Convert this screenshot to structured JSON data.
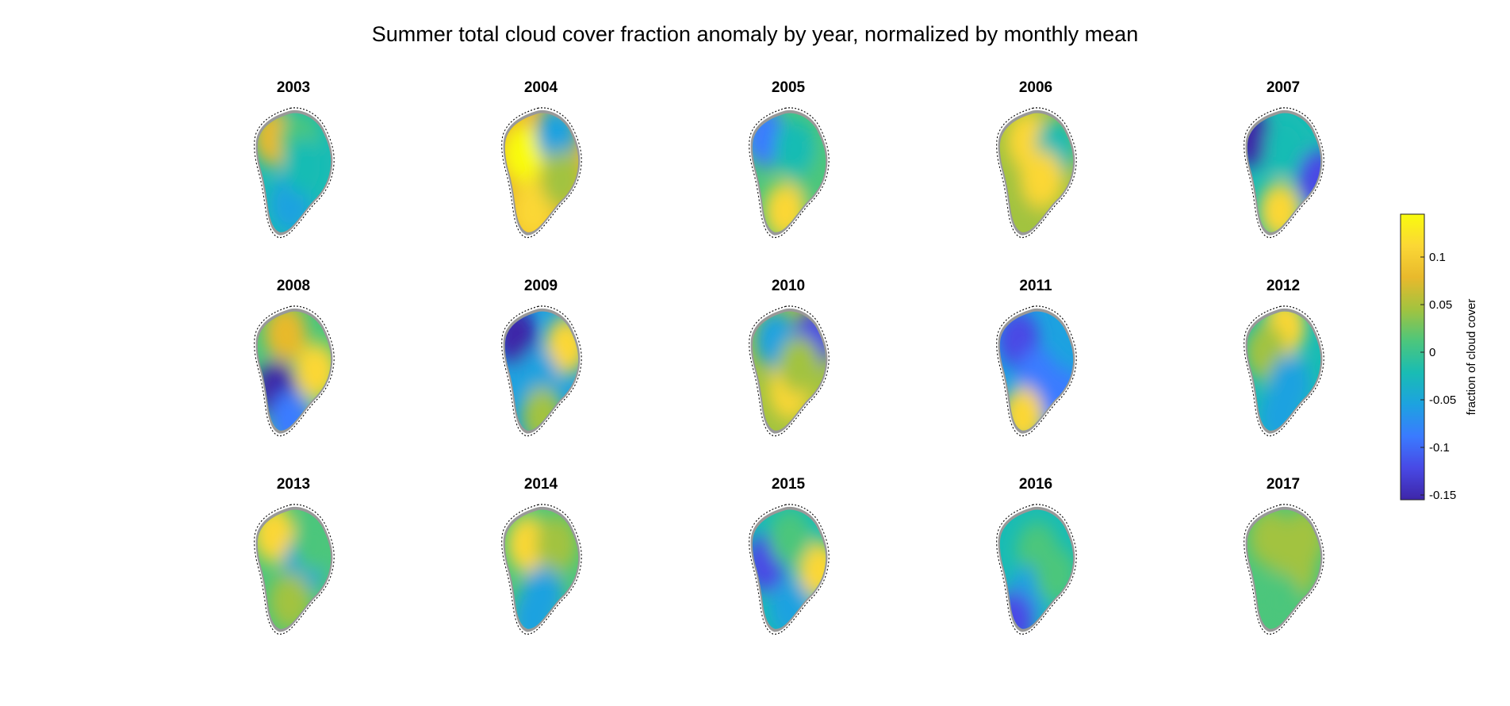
{
  "title": "Summer total cloud cover fraction anomaly by year, normalized by monthly mean",
  "chart_data": {
    "type": "heatmap",
    "title": "Summer total cloud cover fraction anomaly by year, normalized by monthly mean",
    "layout": "3 rows x 5 columns of Greenland maps",
    "panels": [
      {
        "year": "2003",
        "mean_anomaly": -0.01,
        "blobs": [
          {
            "cx": 0.28,
            "cy": 0.22,
            "v": 0.07
          },
          {
            "cx": 0.55,
            "cy": 0.25,
            "v": 0.0
          },
          {
            "cx": 0.45,
            "cy": 0.75,
            "v": -0.06
          },
          {
            "cx": 0.6,
            "cy": 0.45,
            "v": -0.02
          }
        ]
      },
      {
        "year": "2004",
        "mean_anomaly": 0.08,
        "blobs": [
          {
            "cx": 0.3,
            "cy": 0.35,
            "v": 0.14
          },
          {
            "cx": 0.65,
            "cy": 0.2,
            "v": -0.05
          },
          {
            "cx": 0.4,
            "cy": 0.8,
            "v": 0.1
          },
          {
            "cx": 0.7,
            "cy": 0.55,
            "v": 0.03
          }
        ]
      },
      {
        "year": "2005",
        "mean_anomaly": 0.0,
        "blobs": [
          {
            "cx": 0.25,
            "cy": 0.22,
            "v": -0.1
          },
          {
            "cx": 0.45,
            "cy": 0.8,
            "v": 0.1
          },
          {
            "cx": 0.7,
            "cy": 0.45,
            "v": 0.02
          },
          {
            "cx": 0.55,
            "cy": 0.3,
            "v": -0.03
          }
        ]
      },
      {
        "year": "2006",
        "mean_anomaly": 0.06,
        "blobs": [
          {
            "cx": 0.4,
            "cy": 0.25,
            "v": 0.11
          },
          {
            "cx": 0.7,
            "cy": 0.3,
            "v": -0.02
          },
          {
            "cx": 0.35,
            "cy": 0.7,
            "v": 0.04
          },
          {
            "cx": 0.55,
            "cy": 0.55,
            "v": 0.1
          }
        ]
      },
      {
        "year": "2007",
        "mean_anomaly": -0.02,
        "blobs": [
          {
            "cx": 0.15,
            "cy": 0.22,
            "v": -0.15
          },
          {
            "cx": 0.5,
            "cy": 0.3,
            "v": -0.03
          },
          {
            "cx": 0.45,
            "cy": 0.8,
            "v": 0.11
          },
          {
            "cx": 0.85,
            "cy": 0.55,
            "v": -0.12
          }
        ]
      },
      {
        "year": "2008",
        "mean_anomaly": 0.0,
        "blobs": [
          {
            "cx": 0.3,
            "cy": 0.65,
            "v": -0.14
          },
          {
            "cx": 0.72,
            "cy": 0.5,
            "v": 0.11
          },
          {
            "cx": 0.4,
            "cy": 0.2,
            "v": 0.08
          },
          {
            "cx": 0.45,
            "cy": 0.88,
            "v": -0.08
          }
        ]
      },
      {
        "year": "2009",
        "mean_anomaly": -0.04,
        "blobs": [
          {
            "cx": 0.22,
            "cy": 0.22,
            "v": -0.15
          },
          {
            "cx": 0.75,
            "cy": 0.3,
            "v": 0.1
          },
          {
            "cx": 0.45,
            "cy": 0.55,
            "v": -0.05
          },
          {
            "cx": 0.5,
            "cy": 0.85,
            "v": 0.05
          }
        ]
      },
      {
        "year": "2010",
        "mean_anomaly": 0.03,
        "blobs": [
          {
            "cx": 0.5,
            "cy": 0.65,
            "v": 0.12
          },
          {
            "cx": 0.35,
            "cy": 0.25,
            "v": -0.05
          },
          {
            "cx": 0.75,
            "cy": 0.25,
            "v": -0.11
          },
          {
            "cx": 0.6,
            "cy": 0.45,
            "v": 0.04
          }
        ]
      },
      {
        "year": "2011",
        "mean_anomaly": -0.07,
        "blobs": [
          {
            "cx": 0.3,
            "cy": 0.25,
            "v": -0.12
          },
          {
            "cx": 0.5,
            "cy": 0.55,
            "v": -0.09
          },
          {
            "cx": 0.35,
            "cy": 0.85,
            "v": 0.1
          },
          {
            "cx": 0.75,
            "cy": 0.7,
            "v": -0.1
          }
        ]
      },
      {
        "year": "2012",
        "mean_anomaly": -0.01,
        "blobs": [
          {
            "cx": 0.5,
            "cy": 0.15,
            "v": 0.1
          },
          {
            "cx": 0.3,
            "cy": 0.35,
            "v": 0.04
          },
          {
            "cx": 0.55,
            "cy": 0.6,
            "v": -0.05
          },
          {
            "cx": 0.45,
            "cy": 0.85,
            "v": -0.06
          }
        ]
      },
      {
        "year": "2013",
        "mean_anomaly": 0.0,
        "blobs": [
          {
            "cx": 0.28,
            "cy": 0.22,
            "v": 0.11
          },
          {
            "cx": 0.6,
            "cy": 0.45,
            "v": -0.06
          },
          {
            "cx": 0.45,
            "cy": 0.75,
            "v": 0.05
          },
          {
            "cx": 0.7,
            "cy": 0.3,
            "v": 0.02
          }
        ]
      },
      {
        "year": "2014",
        "mean_anomaly": 0.0,
        "blobs": [
          {
            "cx": 0.35,
            "cy": 0.3,
            "v": 0.1
          },
          {
            "cx": 0.65,
            "cy": 0.3,
            "v": 0.06
          },
          {
            "cx": 0.5,
            "cy": 0.7,
            "v": -0.07
          },
          {
            "cx": 0.4,
            "cy": 0.88,
            "v": -0.05
          }
        ]
      },
      {
        "year": "2015",
        "mean_anomaly": -0.03,
        "blobs": [
          {
            "cx": 0.25,
            "cy": 0.45,
            "v": -0.12
          },
          {
            "cx": 0.8,
            "cy": 0.5,
            "v": 0.1
          },
          {
            "cx": 0.5,
            "cy": 0.25,
            "v": 0.0
          },
          {
            "cx": 0.5,
            "cy": 0.8,
            "v": -0.06
          }
        ]
      },
      {
        "year": "2016",
        "mean_anomaly": -0.02,
        "blobs": [
          {
            "cx": 0.5,
            "cy": 0.35,
            "v": 0.0
          },
          {
            "cx": 0.4,
            "cy": 0.7,
            "v": -0.07
          },
          {
            "cx": 0.25,
            "cy": 0.9,
            "v": -0.12
          },
          {
            "cx": 0.7,
            "cy": 0.55,
            "v": 0.01
          }
        ]
      },
      {
        "year": "2017",
        "mean_anomaly": 0.02,
        "blobs": [
          {
            "cx": 0.35,
            "cy": 0.25,
            "v": 0.06
          },
          {
            "cx": 0.6,
            "cy": 0.5,
            "v": 0.04
          },
          {
            "cx": 0.45,
            "cy": 0.75,
            "v": 0.0
          },
          {
            "cx": 0.7,
            "cy": 0.25,
            "v": 0.03
          }
        ]
      }
    ],
    "colorbar": {
      "label": "fraction of cloud cover",
      "range": [
        -0.155,
        0.145
      ],
      "ticks": [
        -0.15,
        -0.1,
        -0.05,
        0,
        0.05,
        0.1
      ],
      "tick_labels": [
        "-0.15",
        "-0.1",
        "-0.05",
        "0",
        "0.05",
        "0.1"
      ],
      "colormap": "parula",
      "colors": [
        "#3e26a8",
        "#4849e5",
        "#3a7bff",
        "#1da2e0",
        "#19bcb4",
        "#4cc67c",
        "#a2c33f",
        "#e8b92c",
        "#fbd735",
        "#f9fb0e"
      ]
    },
    "land_color": "#999999",
    "coastline_style": "dashed black"
  }
}
